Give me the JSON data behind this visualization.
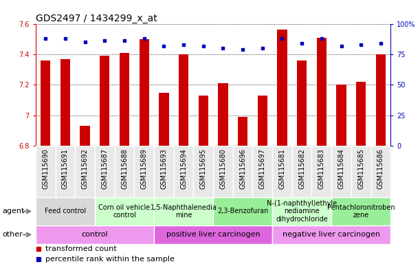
{
  "title": "GDS2497 / 1434299_x_at",
  "samples": [
    "GSM115690",
    "GSM115691",
    "GSM115692",
    "GSM115687",
    "GSM115688",
    "GSM115689",
    "GSM115693",
    "GSM115694",
    "GSM115695",
    "GSM115680",
    "GSM115696",
    "GSM115697",
    "GSM115681",
    "GSM115682",
    "GSM115683",
    "GSM115684",
    "GSM115685",
    "GSM115686"
  ],
  "bar_values": [
    7.36,
    7.37,
    6.93,
    7.39,
    7.41,
    7.5,
    7.15,
    7.4,
    7.13,
    7.21,
    6.99,
    7.13,
    7.56,
    7.36,
    7.51,
    7.2,
    7.22,
    7.4
  ],
  "percentile_values": [
    88,
    88,
    85,
    86,
    86,
    88,
    82,
    83,
    82,
    80,
    79,
    80,
    88,
    84,
    88,
    82,
    83,
    84
  ],
  "ylim_left": [
    6.8,
    7.6
  ],
  "ylim_right": [
    0,
    100
  ],
  "yticks_left": [
    6.8,
    7.0,
    7.2,
    7.4,
    7.6
  ],
  "ytick_labels_left": [
    "6.8",
    "7",
    "7.2",
    "7.4",
    "7.6"
  ],
  "yticks_right": [
    0,
    25,
    50,
    75,
    100
  ],
  "ytick_labels_right": [
    "0",
    "25",
    "50",
    "75",
    "100%"
  ],
  "bar_color": "#CC0000",
  "dot_color": "#0000BB",
  "agent_groups": [
    {
      "label": "Feed control",
      "start": 0,
      "end": 3,
      "color": "#d8d8d8"
    },
    {
      "label": "Corn oil vehicle\ncontrol",
      "start": 3,
      "end": 6,
      "color": "#ccffcc"
    },
    {
      "label": "1,5-Naphthalenedia\nmine",
      "start": 6,
      "end": 9,
      "color": "#ccffcc"
    },
    {
      "label": "2,3-Benzofuran",
      "start": 9,
      "end": 12,
      "color": "#99ee99"
    },
    {
      "label": "N-(1-naphthyl)ethyle\nnediamine\ndihydrochloride",
      "start": 12,
      "end": 15,
      "color": "#ccffcc"
    },
    {
      "label": "Pentachloronitroben\nzene",
      "start": 15,
      "end": 18,
      "color": "#99ee99"
    }
  ],
  "other_groups": [
    {
      "label": "control",
      "start": 0,
      "end": 6,
      "color": "#ee99ee"
    },
    {
      "label": "positive liver carcinogen",
      "start": 6,
      "end": 12,
      "color": "#dd66dd"
    },
    {
      "label": "negative liver carcinogen",
      "start": 12,
      "end": 18,
      "color": "#ee99ee"
    }
  ],
  "legend_items": [
    {
      "label": "transformed count",
      "color": "#CC0000"
    },
    {
      "label": "percentile rank within the sample",
      "color": "#0000BB"
    }
  ],
  "axis_color_left": "#CC0000",
  "axis_color_right": "#0000BB",
  "title_fontsize": 10,
  "tick_fontsize": 7,
  "annotation_fontsize": 7,
  "legend_fontsize": 8
}
